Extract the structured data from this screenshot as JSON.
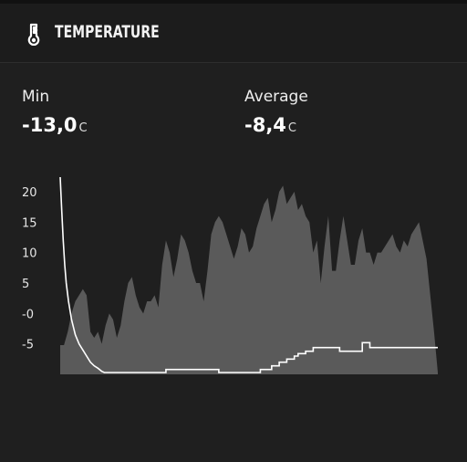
{
  "header": {
    "title": "TEMPERATURE",
    "icon": "thermometer-icon"
  },
  "stats": {
    "min": {
      "label": "Min",
      "value": "-13,0",
      "unit": "C"
    },
    "average": {
      "label": "Average",
      "value": "-8,4",
      "unit": "C"
    }
  },
  "colors": {
    "background": "#1f1f1f",
    "header": "#1c1c1c",
    "area": "#5a5a5a",
    "line": "#ffffff"
  },
  "chart_data": {
    "type": "area",
    "title": "",
    "xlabel": "",
    "ylabel": "",
    "ylim": [
      -10,
      23
    ],
    "y_ticks": [
      20,
      15,
      10,
      5,
      0,
      -5
    ],
    "y_tick_labels": [
      "20",
      "15",
      "10",
      "5",
      "-0",
      "-5"
    ],
    "grid": false,
    "series": [
      {
        "style": "area",
        "x": [
          0,
          1,
          2,
          3,
          4,
          5,
          6,
          7,
          8,
          9,
          10,
          11,
          12,
          13,
          14,
          15,
          16,
          17,
          18,
          19,
          20,
          21,
          22,
          23,
          24,
          25,
          26,
          27,
          28,
          29,
          30,
          31,
          32,
          33,
          34,
          35,
          36,
          37,
          38,
          39,
          40,
          41,
          42,
          43,
          44,
          45,
          46,
          47,
          48,
          49,
          50,
          51,
          52,
          53,
          54,
          55,
          56,
          57,
          58,
          59,
          60,
          61,
          62,
          63,
          64,
          65,
          66,
          67,
          68,
          69,
          70,
          71,
          72,
          73,
          74,
          75,
          76,
          77,
          78,
          79,
          80,
          81,
          82,
          83,
          84,
          85,
          86,
          87,
          88,
          89,
          90,
          91,
          92,
          93,
          94,
          95,
          96,
          97,
          98,
          99,
          100
        ],
        "values": [
          -5.2,
          -5.2,
          -3,
          0,
          2,
          3,
          4,
          3,
          -3,
          -4,
          -3,
          -5,
          -2,
          0,
          -1,
          -4,
          -2,
          2,
          5,
          6,
          3,
          1,
          0,
          2,
          2,
          3,
          1,
          8,
          12,
          10,
          6,
          9,
          13,
          12,
          10,
          7,
          5,
          5,
          2,
          7,
          13,
          15,
          16,
          15,
          13,
          11,
          9,
          11,
          14,
          13,
          10,
          11,
          14,
          16,
          18,
          19,
          15,
          17,
          20,
          21,
          18,
          19,
          20,
          17,
          18,
          16,
          15,
          10,
          12,
          5,
          11,
          16,
          7,
          7,
          12,
          16,
          12,
          8,
          8,
          12,
          14,
          10,
          10,
          8,
          10,
          10,
          11,
          12,
          13,
          11,
          10,
          12,
          11,
          13,
          14,
          15,
          12,
          9,
          3,
          -3,
          -9.7
        ]
      },
      {
        "style": "step-line",
        "x": [
          0,
          0.4,
          0.8,
          1.2,
          1.6,
          2.2,
          3,
          4,
          5,
          6,
          7,
          8,
          9,
          10,
          11,
          11.7,
          12,
          12.3,
          12.6,
          13,
          14,
          15,
          16,
          17,
          18,
          19,
          20,
          21,
          22,
          23,
          24,
          25,
          26,
          27,
          28,
          29,
          30,
          31,
          32,
          33,
          34,
          35,
          36,
          37,
          38,
          39,
          40,
          41,
          42,
          43,
          44,
          45,
          46,
          47,
          48,
          49,
          50,
          51,
          52,
          53,
          54,
          55,
          56,
          57,
          58,
          59,
          60,
          61,
          62,
          63,
          64,
          65,
          66,
          67,
          68,
          69,
          70,
          71,
          72,
          73,
          74,
          75,
          76,
          77,
          78,
          79,
          80,
          81,
          82,
          83,
          84,
          85,
          86,
          87,
          88,
          89,
          90,
          91,
          92,
          93,
          94,
          95,
          96,
          97,
          98,
          99,
          100
        ],
        "values": [
          22.4,
          17,
          12,
          8,
          5,
          2,
          -1,
          -3.5,
          -5,
          -6,
          -7,
          -8,
          -8.6,
          -9,
          -9.5,
          -9.7,
          -9.7,
          -9.7,
          -9.7,
          -9.7,
          -9.7,
          -9.7,
          -9.7,
          -9.7,
          -9.7,
          -9.7,
          -9.7,
          -9.7,
          -9.7,
          -9.7,
          -9.7,
          -9.7,
          -9.7,
          -9.7,
          -9.2,
          -9.2,
          -9.2,
          -9.2,
          -9.2,
          -9.2,
          -9.2,
          -9.2,
          -9.2,
          -9.2,
          -9.2,
          -9.2,
          -9.2,
          -9.2,
          -9.7,
          -9.7,
          -9.7,
          -9.7,
          -9.7,
          -9.7,
          -9.7,
          -9.7,
          -9.7,
          -9.7,
          -9.7,
          -9.2,
          -9.2,
          -9.2,
          -8.6,
          -8.6,
          -8.0,
          -8.0,
          -7.5,
          -7.5,
          -7.0,
          -6.6,
          -6.6,
          -6.2,
          -6.2,
          -5.6,
          -5.6,
          -5.6,
          -5.6,
          -5.6,
          -5.6,
          -5.6,
          -6.2,
          -6.2,
          -6.2,
          -6.2,
          -6.2,
          -6.2,
          -4.8,
          -4.8,
          -5.6,
          -5.6,
          -5.6,
          -5.6,
          -5.6,
          -5.6,
          -5.6,
          -5.6,
          -5.6,
          -5.6,
          -5.6,
          -5.6,
          -5.6,
          -5.6,
          -5.6,
          -5.6,
          -5.6,
          -5.6,
          -5.6
        ]
      }
    ]
  }
}
